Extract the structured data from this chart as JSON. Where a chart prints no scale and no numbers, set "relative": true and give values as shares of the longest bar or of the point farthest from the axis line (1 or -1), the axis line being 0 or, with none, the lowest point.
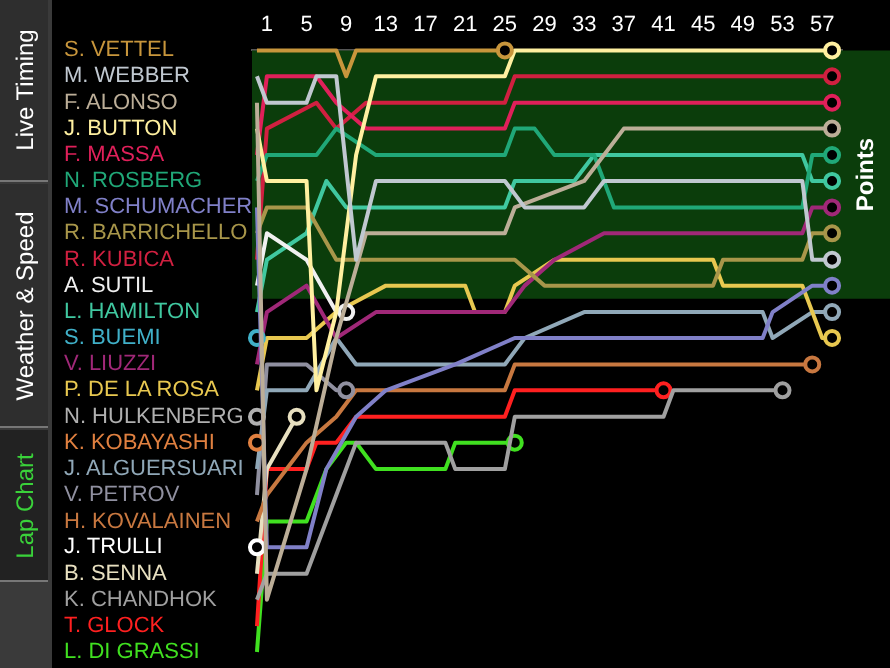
{
  "chart_data": {
    "type": "line",
    "relative": true,
    "xlim": [
      -0.5,
      59
    ],
    "xticks": [
      1,
      5,
      9,
      13,
      17,
      21,
      25,
      29,
      33,
      37,
      41,
      45,
      49,
      53,
      57
    ],
    "legend": false,
    "bands": [
      {
        "axis": "y",
        "from": 0.587,
        "to": 1,
        "label": "Points",
        "color": "#0b3d0b"
      }
    ],
    "annotations": [
      "Live Timing",
      "Weather & Speed",
      "Lap Chart"
    ],
    "series": [
      {
        "name": "S. VETTEL",
        "color": "#c8963c",
        "x": [
          0,
          8,
          9,
          10,
          25
        ],
        "values": [
          1,
          1,
          0.957,
          1,
          1
        ]
      },
      {
        "name": "M. WEBBER",
        "color": "#c0c8d0",
        "x": [
          0,
          1,
          5,
          6,
          8,
          10,
          12,
          25,
          27,
          33,
          35,
          55,
          56,
          58
        ],
        "values": [
          0.957,
          0.913,
          0.913,
          0.957,
          0.957,
          0.652,
          0.783,
          0.783,
          0.739,
          0.739,
          0.783,
          0.783,
          0.652,
          0.652
        ]
      },
      {
        "name": "F. ALONSO",
        "color": "#bcae98",
        "x": [
          0,
          1,
          5,
          8,
          11,
          25,
          26,
          33,
          35,
          37,
          58
        ],
        "values": [
          0.913,
          0.087,
          0.304,
          0.522,
          0.696,
          0.696,
          0.739,
          0.783,
          0.826,
          0.87,
          0.87
        ]
      },
      {
        "name": "J. BUTTON",
        "color": "#fff0a0",
        "x": [
          0,
          1,
          5,
          6,
          8,
          10,
          12,
          25,
          26,
          58
        ],
        "values": [
          0.87,
          0.783,
          0.783,
          0.435,
          0.565,
          0.826,
          0.957,
          0.957,
          1,
          1
        ]
      },
      {
        "name": "F. MASSA",
        "color": "#e0205a",
        "x": [
          0,
          1,
          6,
          8,
          11,
          25,
          26,
          58
        ],
        "values": [
          0.826,
          0.957,
          0.957,
          0.913,
          0.87,
          0.87,
          0.913,
          0.913
        ]
      },
      {
        "name": "N. ROSBERG",
        "color": "#20a878",
        "x": [
          0,
          1,
          6,
          8,
          12,
          25,
          26,
          28,
          30,
          34,
          36,
          55,
          56,
          58
        ],
        "values": [
          0.783,
          0.826,
          0.826,
          0.87,
          0.826,
          0.826,
          0.87,
          0.87,
          0.826,
          0.826,
          0.739,
          0.739,
          0.826,
          0.826
        ]
      },
      {
        "name": "M. SCHUMACHER",
        "color": "#8080c8",
        "x": [
          0,
          1,
          5,
          7,
          10,
          13,
          20,
          26,
          51,
          52,
          56,
          58
        ],
        "values": [
          0.739,
          0.174,
          0.174,
          0.304,
          0.391,
          0.435,
          0.478,
          0.522,
          0.522,
          0.565,
          0.609,
          0.609
        ]
      },
      {
        "name": "R. BARRICHELLO",
        "color": "#a8964a",
        "x": [
          0,
          1,
          5,
          8,
          12,
          26,
          29,
          46,
          47,
          55,
          56,
          58
        ],
        "values": [
          0.696,
          0.739,
          0.739,
          0.652,
          0.652,
          0.652,
          0.609,
          0.609,
          0.652,
          0.652,
          0.696,
          0.696
        ]
      },
      {
        "name": "R. KUBICA",
        "color": "#d02040",
        "x": [
          0,
          1,
          6,
          8,
          11,
          25,
          26,
          58
        ],
        "values": [
          0.652,
          0.87,
          0.913,
          0.87,
          0.913,
          0.913,
          0.957,
          0.957
        ]
      },
      {
        "name": "A. SUTIL",
        "color": "#f0f0f0",
        "x": [
          0,
          1,
          5,
          8,
          9
        ],
        "values": [
          0.609,
          0.696,
          0.652,
          0.565,
          0.565
        ]
      },
      {
        "name": "L. HAMILTON",
        "color": "#40c8a0",
        "x": [
          0,
          1,
          5,
          7,
          9,
          12,
          25,
          26,
          32,
          34,
          55,
          56,
          58
        ],
        "values": [
          0.565,
          0.652,
          0.696,
          0.783,
          0.739,
          0.739,
          0.739,
          0.783,
          0.783,
          0.826,
          0.826,
          0.783,
          0.783
        ]
      },
      {
        "name": "S. BUEMI",
        "color": "#40b0c8",
        "marker": "circle",
        "x": [
          0
        ],
        "values": [
          0.522
        ]
      },
      {
        "name": "V. LIUZZI",
        "color": "#a02878",
        "x": [
          0,
          1,
          5,
          8,
          12,
          25,
          27,
          30,
          35,
          55,
          56,
          58
        ],
        "values": [
          0.478,
          0.565,
          0.609,
          0.522,
          0.565,
          0.565,
          0.609,
          0.652,
          0.696,
          0.696,
          0.739,
          0.739
        ]
      },
      {
        "name": "P. DE LA ROSA",
        "color": "#e8c850",
        "x": [
          0,
          1,
          5,
          8,
          13,
          21,
          22,
          25,
          26,
          30,
          46,
          47,
          55,
          57,
          58
        ],
        "values": [
          0.435,
          0.522,
          0.522,
          0.565,
          0.609,
          0.609,
          0.565,
          0.565,
          0.609,
          0.652,
          0.652,
          0.609,
          0.609,
          0.522,
          0.522
        ]
      },
      {
        "name": "N. HULKENBERG",
        "color": "#b0b0b0",
        "marker": "circle",
        "x": [
          0
        ],
        "values": [
          0.391
        ]
      },
      {
        "name": "K. KOBAYASHI",
        "color": "#e08040",
        "marker": "circle",
        "x": [
          0
        ],
        "values": [
          0.348
        ]
      },
      {
        "name": "J. ALGUERSUARI",
        "color": "#90a8b8",
        "x": [
          0,
          1,
          5,
          8,
          10,
          25,
          27,
          33,
          51,
          52,
          56,
          58
        ],
        "values": [
          0.304,
          0.435,
          0.435,
          0.522,
          0.478,
          0.478,
          0.522,
          0.565,
          0.565,
          0.522,
          0.565,
          0.565
        ]
      },
      {
        "name": "V. PETROV",
        "color": "#9090a0",
        "x": [
          0,
          1,
          5,
          8,
          9
        ],
        "values": [
          0.261,
          0.478,
          0.478,
          0.435,
          0.435
        ]
      },
      {
        "name": "H. KOVALAINEN",
        "color": "#c87840",
        "x": [
          0,
          1,
          5,
          8,
          10,
          25,
          26,
          56
        ],
        "values": [
          0.217,
          0.261,
          0.348,
          0.391,
          0.435,
          0.435,
          0.478,
          0.478
        ]
      },
      {
        "name": "J. TRULLI",
        "color": "#ffffff",
        "marker": "circle",
        "x": [
          0
        ],
        "values": [
          0.174
        ]
      },
      {
        "name": "B. SENNA",
        "color": "#e8e0c0",
        "x": [
          0,
          1,
          4
        ],
        "values": [
          0.13,
          0.304,
          0.391
        ]
      },
      {
        "name": "K. CHANDHOK",
        "color": "#a0a0a0",
        "x": [
          0,
          1,
          5,
          8,
          10,
          19,
          20,
          25,
          26,
          41,
          42,
          53
        ],
        "values": [
          0.087,
          0.13,
          0.13,
          0.261,
          0.348,
          0.348,
          0.304,
          0.304,
          0.391,
          0.391,
          0.435,
          0.435
        ]
      },
      {
        "name": "T. GLOCK",
        "color": "#ff2020",
        "x": [
          0,
          1,
          5,
          6,
          8,
          10,
          25,
          26,
          41
        ],
        "values": [
          0.043,
          0.304,
          0.304,
          0.348,
          0.348,
          0.391,
          0.391,
          0.435,
          0.435
        ]
      },
      {
        "name": "L. DI GRASSI",
        "color": "#40e020",
        "x": [
          0,
          1,
          5,
          7,
          9,
          10,
          12,
          19,
          20,
          26
        ],
        "values": [
          0,
          0.217,
          0.217,
          0.304,
          0.348,
          0.348,
          0.304,
          0.304,
          0.348,
          0.348
        ]
      }
    ]
  }
}
